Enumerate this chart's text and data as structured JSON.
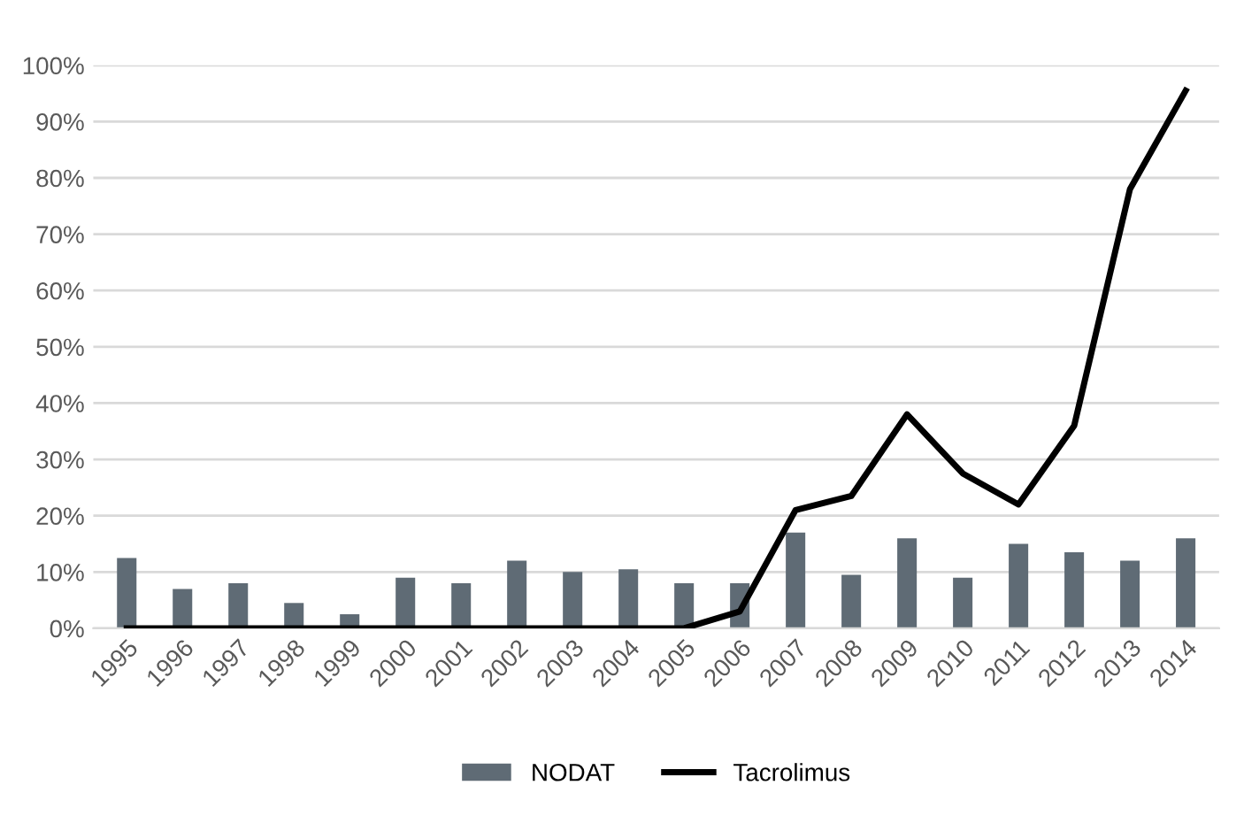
{
  "chart_data": {
    "type": "bar",
    "categories": [
      "1995",
      "1996",
      "1997",
      "1998",
      "1999",
      "2000",
      "2001",
      "2002",
      "2003",
      "2004",
      "2005",
      "2006",
      "2007",
      "2008",
      "2009",
      "2010",
      "2011",
      "2012",
      "2013",
      "2014"
    ],
    "series": [
      {
        "name": "NODAT",
        "color": "#5f6b75",
        "values": [
          12.5,
          7,
          8,
          4.5,
          2.5,
          9,
          8,
          12,
          10,
          10.5,
          8,
          8,
          17,
          9.5,
          16,
          9,
          15,
          13.5,
          12,
          16
        ]
      },
      {
        "name": "Tacrolimus",
        "type": "line",
        "color": "#000000",
        "values": [
          0,
          0,
          0,
          0,
          0,
          0,
          0,
          0,
          0,
          0,
          0,
          3,
          21,
          23.5,
          38,
          27.5,
          22,
          36,
          78,
          95.5
        ]
      }
    ],
    "ylim": [
      0,
      100
    ],
    "yticks": [
      {
        "value": 0,
        "label": "0%"
      },
      {
        "value": 10,
        "label": "10%"
      },
      {
        "value": 20,
        "label": "20%"
      },
      {
        "value": 30,
        "label": "30%"
      },
      {
        "value": 40,
        "label": "40%"
      },
      {
        "value": 50,
        "label": "50%"
      },
      {
        "value": 60,
        "label": "60%"
      },
      {
        "value": 70,
        "label": "70%"
      },
      {
        "value": 80,
        "label": "80%"
      },
      {
        "value": 90,
        "label": "90%"
      },
      {
        "value": 100,
        "label": "100%"
      }
    ],
    "grid": "y",
    "legend": "bottom",
    "marker": "none",
    "line_style": "solid"
  }
}
